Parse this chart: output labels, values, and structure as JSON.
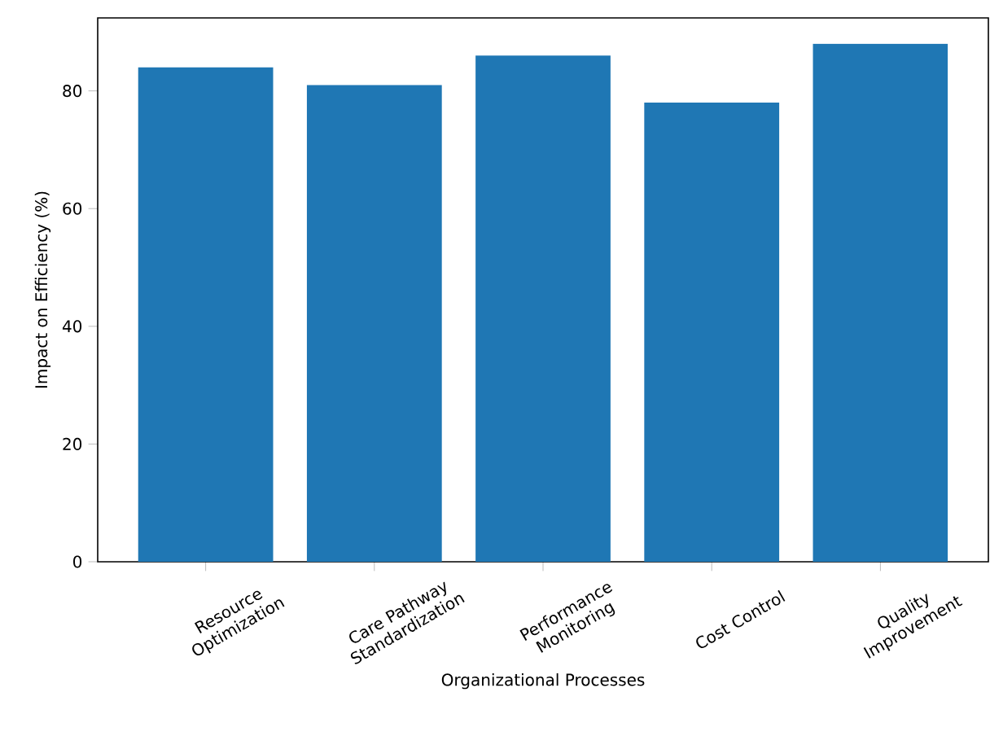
{
  "chart_data": {
    "type": "bar",
    "xlabel": "Organizational Processes",
    "ylabel": "Impact on Efficiency (%)",
    "categories": [
      "Resource Optimization",
      "Care Pathway Standardization",
      "Performance Monitoring",
      "Cost Control",
      "Quality Improvement"
    ],
    "values": [
      84,
      81,
      86,
      78,
      88
    ],
    "color": "#1f77b4",
    "ylim": [
      0,
      92.4
    ],
    "yticks": [
      0,
      20,
      40,
      60,
      80
    ],
    "grid": false
  }
}
